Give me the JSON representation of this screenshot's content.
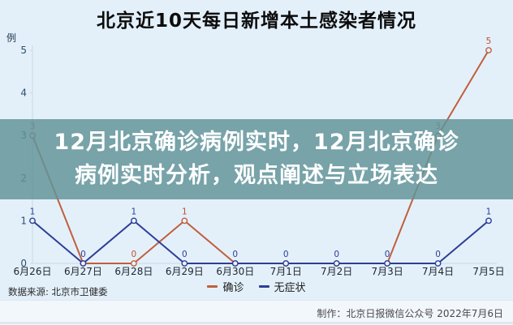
{
  "title": "北京近10天每日新增本土感染者情况",
  "overlay": {
    "line1": "12月北京确诊病例实时，12月北京确诊",
    "line2": "病例实时分析，观点阐述与立场表达"
  },
  "chart_data": {
    "type": "line",
    "title": "北京近10天每日新增本土感染者情况",
    "unit_label": "例",
    "xlabel": "",
    "ylabel": "例",
    "ylim": [
      0,
      5
    ],
    "yticks": [
      0,
      1,
      2,
      3,
      4,
      5
    ],
    "grid": false,
    "legend_position": "bottom-center",
    "categories": [
      "6月26日",
      "6月27日",
      "6月28日",
      "6月29日",
      "6月30日",
      "7月1日",
      "7月2日",
      "7月3日",
      "7月4日",
      "7月5日"
    ],
    "series": [
      {
        "name": "确诊",
        "color": "#c05f3c",
        "label_color": "#c0512e",
        "values": [
          3,
          0,
          0,
          1,
          0,
          0,
          0,
          0,
          3,
          5
        ]
      },
      {
        "name": "无症状",
        "color": "#2e3d96",
        "label_color": "#2e3d96",
        "values": [
          1,
          0,
          1,
          0,
          0,
          0,
          0,
          0,
          0,
          1
        ]
      }
    ],
    "zero_label_owner": {
      "1": 1,
      "2": 0,
      "3": 1,
      "4": 1,
      "5": 1,
      "6": 1,
      "7": 1,
      "8": 1
    },
    "axis_color": "#c9d9e6",
    "tick_color": "#2d4f6b",
    "category_color": "#1c2430"
  },
  "legend": {
    "items": [
      {
        "label": "确诊",
        "color": "#c05f3c"
      },
      {
        "label": "无症状",
        "color": "#2e3d96"
      }
    ]
  },
  "footer": {
    "source": "数据来源: 北京市卫健委",
    "credit": "制作：北京日报微信公众号  2022年7月6日"
  }
}
